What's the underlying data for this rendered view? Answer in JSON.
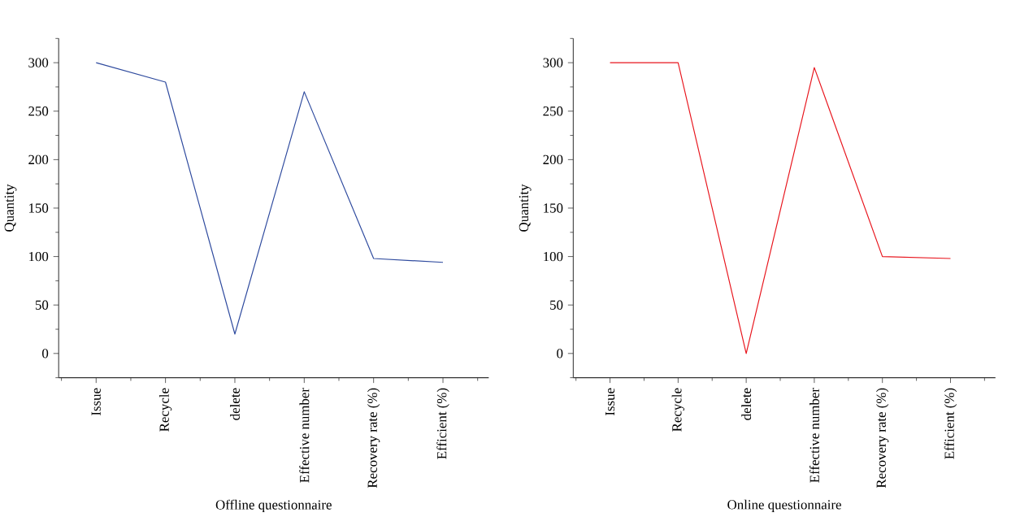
{
  "chart_data": [
    {
      "type": "line",
      "xlabel": "Offline questionnaire",
      "ylabel": "Quantity",
      "categories": [
        "Issue",
        "Recycle",
        "delete",
        "Effective number",
        "Recovery rate (%)",
        "Efficient (%)"
      ],
      "values": [
        300,
        280,
        20,
        270,
        98,
        94
      ],
      "color": "#2e4a9e",
      "ylim": [
        -25,
        325
      ],
      "yticks": [
        0,
        50,
        100,
        150,
        200,
        250,
        300
      ],
      "grid": false,
      "marker": "none",
      "line_style": "solid"
    },
    {
      "type": "line",
      "xlabel": "Online questionnaire",
      "ylabel": "Quantity",
      "categories": [
        "Issue",
        "Recycle",
        "delete",
        "Effective number",
        "Recovery rate (%)",
        "Efficient (%)"
      ],
      "values": [
        300,
        300,
        0,
        295,
        100,
        98
      ],
      "color": "#e8141c",
      "ylim": [
        -25,
        325
      ],
      "yticks": [
        0,
        50,
        100,
        150,
        200,
        250,
        300
      ],
      "grid": false,
      "marker": "none",
      "line_style": "solid"
    }
  ]
}
